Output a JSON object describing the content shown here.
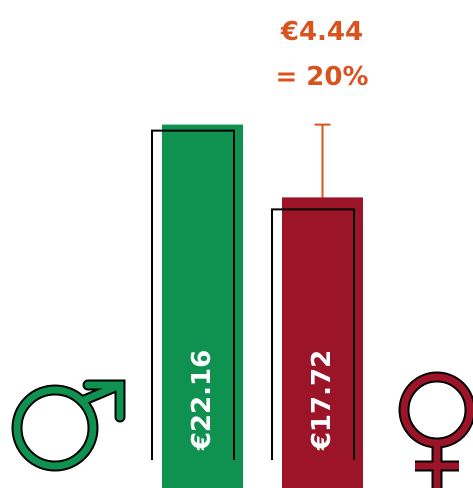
{
  "chart_data": {
    "type": "bar",
    "categories": [
      null,
      null
    ],
    "values": [
      22.16,
      17.72
    ],
    "value_labels": [
      "€22.16",
      "€17.72"
    ],
    "colors": [
      "#0f9150",
      "#9b1428"
    ],
    "difference": {
      "value": 4.44,
      "label": "€4.44"
    },
    "difference_percent": {
      "value": 20,
      "label": "= 20%"
    },
    "annotation_color": "#d9531e"
  }
}
